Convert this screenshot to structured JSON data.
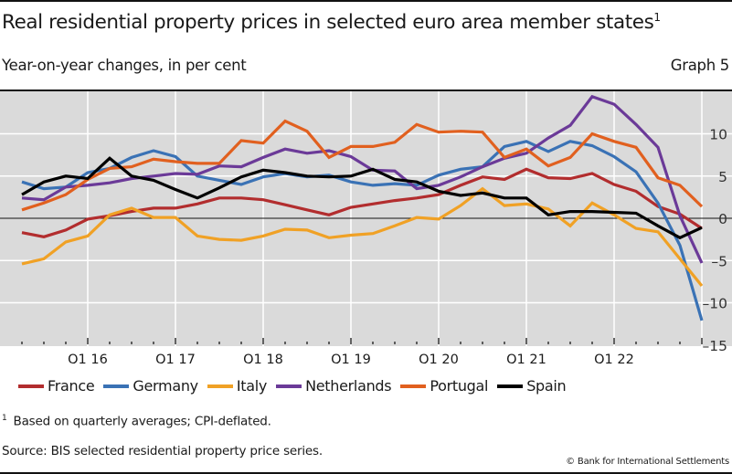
{
  "header": {
    "title": "Real residential property prices in selected euro area member states",
    "title_footnote_mark": "1",
    "subtitle": "Year-on-year changes, in per cent",
    "graph_number": "Graph 5"
  },
  "footer": {
    "footnote_mark": "1",
    "footnote": "Based on quarterly averages; CPI-deflated.",
    "source": "Source: BIS selected residential property price series.",
    "copyright": "© Bank for International Settlements"
  },
  "chart_data": {
    "type": "line",
    "title": "Real residential property prices in selected euro area member states",
    "subtitle": "Year-on-year changes, in per cent",
    "xlabel": "",
    "ylabel": "",
    "ylim": [
      -15,
      15
    ],
    "yticks": [
      10,
      5,
      0,
      -5,
      -10,
      -15
    ],
    "ytick_labels": [
      "10",
      "5",
      "0",
      "–5",
      "–10",
      "–15"
    ],
    "y_axis_side": "right",
    "grid": true,
    "background": "#dadada",
    "legend_position": "bottom",
    "x": [
      "Q2 15",
      "Q3 15",
      "Q4 15",
      "Q1 16",
      "Q2 16",
      "Q3 16",
      "Q4 16",
      "Q1 17",
      "Q2 17",
      "Q3 17",
      "Q4 17",
      "Q1 18",
      "Q2 18",
      "Q3 18",
      "Q4 18",
      "Q1 19",
      "Q2 19",
      "Q3 19",
      "Q4 19",
      "Q1 20",
      "Q2 20",
      "Q3 20",
      "Q4 20",
      "Q1 21",
      "Q2 21",
      "Q3 21",
      "Q4 21",
      "Q1 22",
      "Q2 22",
      "Q3 22",
      "Q4 22",
      "Q1 23"
    ],
    "xtick_labels": [
      {
        "label": "Q1 16",
        "index": 3
      },
      {
        "label": "Q1 17",
        "index": 7
      },
      {
        "label": "Q1 18",
        "index": 11
      },
      {
        "label": "Q1 19",
        "index": 15
      },
      {
        "label": "Q1 20",
        "index": 19
      },
      {
        "label": "Q1 21",
        "index": 23
      },
      {
        "label": "Q1 22",
        "index": 27
      }
    ],
    "series": [
      {
        "name": "France",
        "color": "#b22d2e",
        "values": [
          -1.7,
          -2.2,
          -1.4,
          -0.1,
          0.3,
          0.8,
          1.2,
          1.2,
          1.7,
          2.4,
          2.4,
          2.2,
          1.6,
          1.0,
          0.4,
          1.3,
          1.7,
          2.1,
          2.4,
          2.8,
          3.9,
          4.9,
          4.6,
          5.8,
          4.8,
          4.7,
          5.3,
          4.0,
          3.2,
          1.4,
          0.5,
          -1.2
        ]
      },
      {
        "name": "Germany",
        "color": "#3a72b5",
        "values": [
          4.3,
          3.5,
          3.7,
          5.4,
          5.9,
          7.2,
          8.0,
          7.3,
          5.0,
          4.5,
          4.0,
          4.9,
          5.3,
          4.9,
          5.1,
          4.3,
          3.9,
          4.1,
          3.9,
          5.1,
          5.8,
          6.1,
          8.5,
          9.1,
          7.9,
          9.1,
          8.6,
          7.3,
          5.5,
          1.8,
          -3.2,
          -12.1
        ]
      },
      {
        "name": "Italy",
        "color": "#f0a125",
        "values": [
          -5.4,
          -4.8,
          -2.8,
          -2.1,
          0.4,
          1.2,
          0.1,
          0.1,
          -2.1,
          -2.5,
          -2.6,
          -2.1,
          -1.3,
          -1.4,
          -2.3,
          -2.0,
          -1.8,
          -0.9,
          0.1,
          -0.1,
          1.5,
          3.5,
          1.5,
          1.7,
          1.1,
          -0.9,
          1.8,
          0.4,
          -1.2,
          -1.6,
          -4.8,
          -8.0
        ]
      },
      {
        "name": "Netherlands",
        "color": "#6b3a98",
        "values": [
          2.4,
          2.2,
          3.7,
          3.9,
          4.2,
          4.7,
          5.0,
          5.3,
          5.2,
          6.2,
          6.1,
          7.2,
          8.2,
          7.7,
          8.0,
          7.3,
          5.7,
          5.6,
          3.5,
          3.9,
          4.9,
          6.1,
          7.1,
          7.7,
          9.5,
          11.0,
          14.4,
          13.5,
          11.1,
          8.4,
          0.3,
          -5.3
        ]
      },
      {
        "name": "Portugal",
        "color": "#e1601f",
        "values": [
          1.0,
          1.8,
          2.8,
          4.6,
          5.9,
          6.1,
          7.0,
          6.7,
          6.5,
          6.5,
          9.2,
          8.9,
          11.5,
          10.3,
          7.2,
          8.5,
          8.5,
          9.0,
          11.1,
          10.2,
          10.3,
          10.2,
          7.2,
          8.2,
          6.2,
          7.2,
          10.0,
          9.1,
          8.4,
          4.8,
          3.9,
          1.4
        ]
      },
      {
        "name": "Spain",
        "color": "#000000",
        "values": [
          2.8,
          4.3,
          5.0,
          4.7,
          7.1,
          5.0,
          4.5,
          3.4,
          2.4,
          3.6,
          4.9,
          5.7,
          5.4,
          5.0,
          4.9,
          5.0,
          5.8,
          4.6,
          4.3,
          3.2,
          2.7,
          3.0,
          2.4,
          2.4,
          0.4,
          0.8,
          0.8,
          0.7,
          0.6,
          -0.9,
          -2.3,
          -1.1
        ]
      }
    ]
  }
}
